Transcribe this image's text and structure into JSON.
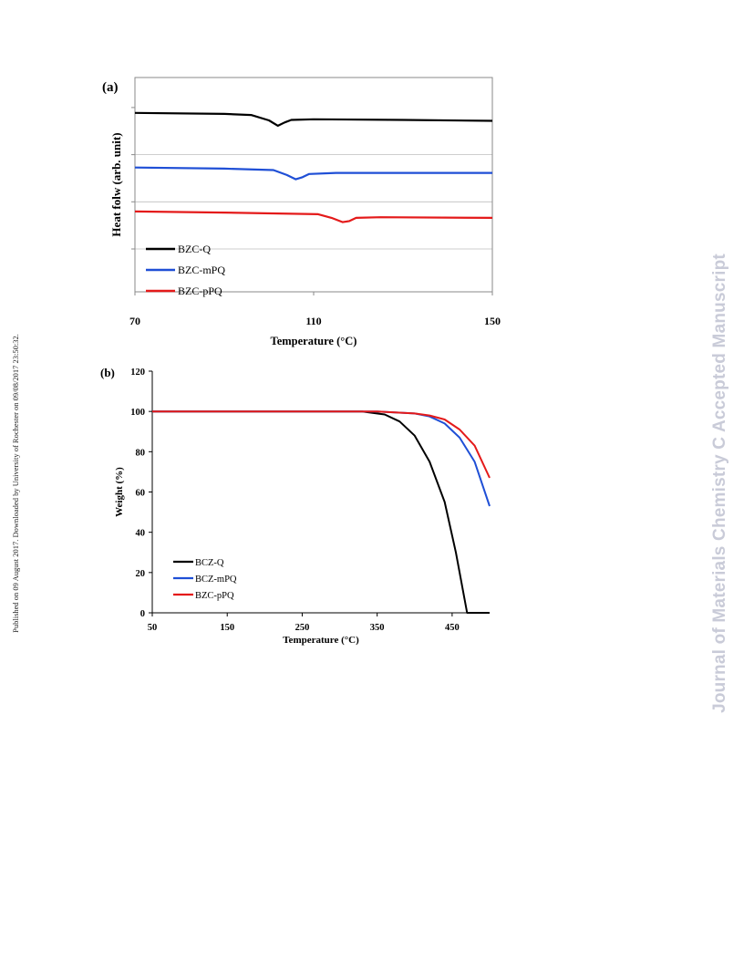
{
  "sidebar": {
    "published_note": "Published on 09 August 2017. Downloaded by University of Rochester on 09/08/2017 23:50:32."
  },
  "watermark": {
    "text": "Journal of Materials Chemistry C Accepted Manuscript"
  },
  "chart_data": [
    {
      "panel_label": "(a)",
      "type": "line",
      "title": "",
      "xlabel": "Temperature (°C)",
      "ylabel": "Heat folw (arb. unit)",
      "xlim": [
        70,
        150
      ],
      "xticks": [
        70,
        110,
        150
      ],
      "y_axis_tick_labels": false,
      "grid": true,
      "legend_position": "bottom-left",
      "series": [
        {
          "name": "BZC-Q",
          "color": "#000000",
          "points": [
            [
              70,
              8.35
            ],
            [
              90,
              8.3
            ],
            [
              96,
              8.25
            ],
            [
              100,
              8.0
            ],
            [
              102,
              7.75
            ],
            [
              103.5,
              7.9
            ],
            [
              105,
              8.02
            ],
            [
              110,
              8.05
            ],
            [
              130,
              8.02
            ],
            [
              150,
              7.98
            ]
          ]
        },
        {
          "name": "BZC-mPQ",
          "color": "#1f4fd6",
          "points": [
            [
              70,
              5.8
            ],
            [
              90,
              5.75
            ],
            [
              101,
              5.68
            ],
            [
              104,
              5.45
            ],
            [
              106,
              5.25
            ],
            [
              107.5,
              5.35
            ],
            [
              109,
              5.5
            ],
            [
              115,
              5.55
            ],
            [
              150,
              5.55
            ]
          ]
        },
        {
          "name": "BZC-pPQ",
          "color": "#e41a1a",
          "points": [
            [
              70,
              3.75
            ],
            [
              90,
              3.7
            ],
            [
              111,
              3.62
            ],
            [
              114,
              3.45
            ],
            [
              116.5,
              3.25
            ],
            [
              118,
              3.3
            ],
            [
              119.5,
              3.45
            ],
            [
              125,
              3.48
            ],
            [
              150,
              3.45
            ]
          ]
        }
      ]
    },
    {
      "panel_label": "(b)",
      "type": "line",
      "title": "",
      "xlabel": "Temperature (°C)",
      "ylabel": "Weight (%)",
      "xlim": [
        50,
        500
      ],
      "ylim": [
        0,
        120
      ],
      "xticks": [
        50,
        150,
        250,
        350,
        450
      ],
      "yticks": [
        0,
        20,
        40,
        60,
        80,
        100,
        120
      ],
      "grid": false,
      "legend_position": "bottom-left",
      "series": [
        {
          "name": "BCZ-Q",
          "color": "#000000",
          "points": [
            [
              50,
              100
            ],
            [
              250,
              100
            ],
            [
              330,
              100
            ],
            [
              360,
              98.5
            ],
            [
              380,
              95
            ],
            [
              400,
              88
            ],
            [
              420,
              75
            ],
            [
              440,
              55
            ],
            [
              455,
              30
            ],
            [
              465,
              10
            ],
            [
              470,
              0
            ],
            [
              500,
              0
            ]
          ]
        },
        {
          "name": "BCZ-mPQ",
          "color": "#1f4fd6",
          "points": [
            [
              50,
              100
            ],
            [
              350,
              100
            ],
            [
              400,
              99
            ],
            [
              420,
              97.5
            ],
            [
              440,
              94
            ],
            [
              460,
              87
            ],
            [
              480,
              75
            ],
            [
              500,
              53
            ]
          ]
        },
        {
          "name": "BZC-pPQ",
          "color": "#e41a1a",
          "points": [
            [
              50,
              100
            ],
            [
              350,
              100
            ],
            [
              400,
              99
            ],
            [
              420,
              98
            ],
            [
              440,
              96
            ],
            [
              460,
              91
            ],
            [
              480,
              83
            ],
            [
              500,
              67
            ]
          ]
        }
      ]
    }
  ]
}
